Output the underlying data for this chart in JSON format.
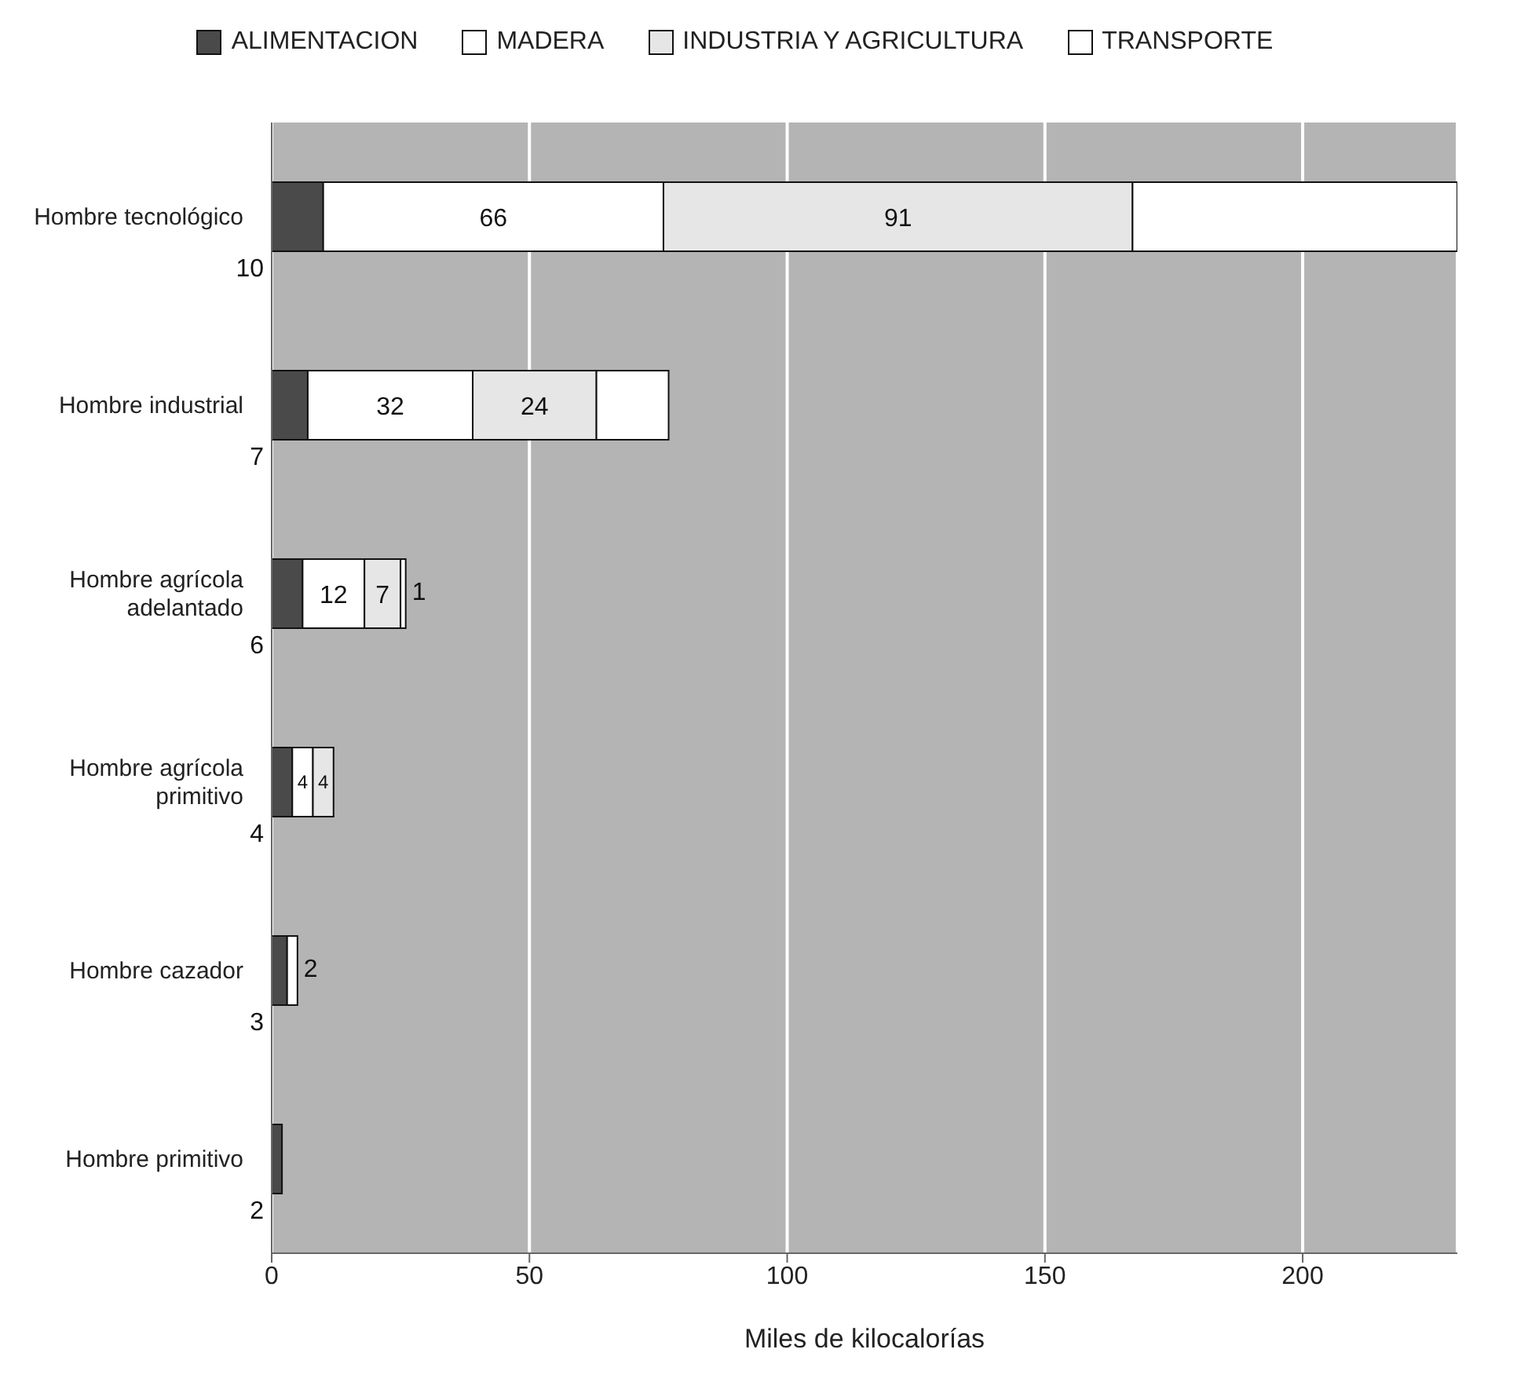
{
  "chart_data": {
    "type": "bar",
    "orientation": "horizontal",
    "stacked": true,
    "xlabel": "Miles de kilocalorías",
    "categories": [
      "Hombre tecnológico",
      "Hombre industrial",
      "Hombre agrícola adelantado",
      "Hombre agrícola primitivo",
      "Hombre cazador",
      "Hombre primitivo"
    ],
    "series": [
      {
        "name": "ALIMENTACION",
        "color": "#4a4a4a",
        "values": [
          10,
          7,
          6,
          4,
          3,
          2
        ],
        "value_labels": [
          "10",
          "7",
          "6",
          "4",
          "3",
          "2"
        ]
      },
      {
        "name": "MADERA",
        "color": "#ffffff",
        "values": [
          66,
          32,
          12,
          4,
          2,
          null
        ],
        "value_labels": [
          "66",
          "32",
          "12",
          "4",
          "2",
          null
        ]
      },
      {
        "name": "INDUSTRIA Y AGRICULTURA",
        "color": "#e6e6e6",
        "values": [
          91,
          24,
          7,
          4,
          null,
          null
        ],
        "value_labels": [
          "91",
          "24",
          "7",
          "4",
          null,
          null
        ]
      },
      {
        "name": "TRANSPORTE",
        "color": "#ffffff",
        "values": [
          63,
          14,
          1,
          null,
          null,
          null
        ],
        "value_labels": [
          null,
          null,
          "1",
          null,
          null,
          null
        ]
      }
    ],
    "xlim": [
      0,
      230
    ],
    "xticks": [
      0,
      50,
      100,
      150,
      200
    ],
    "grid": "x",
    "legend": "top"
  }
}
